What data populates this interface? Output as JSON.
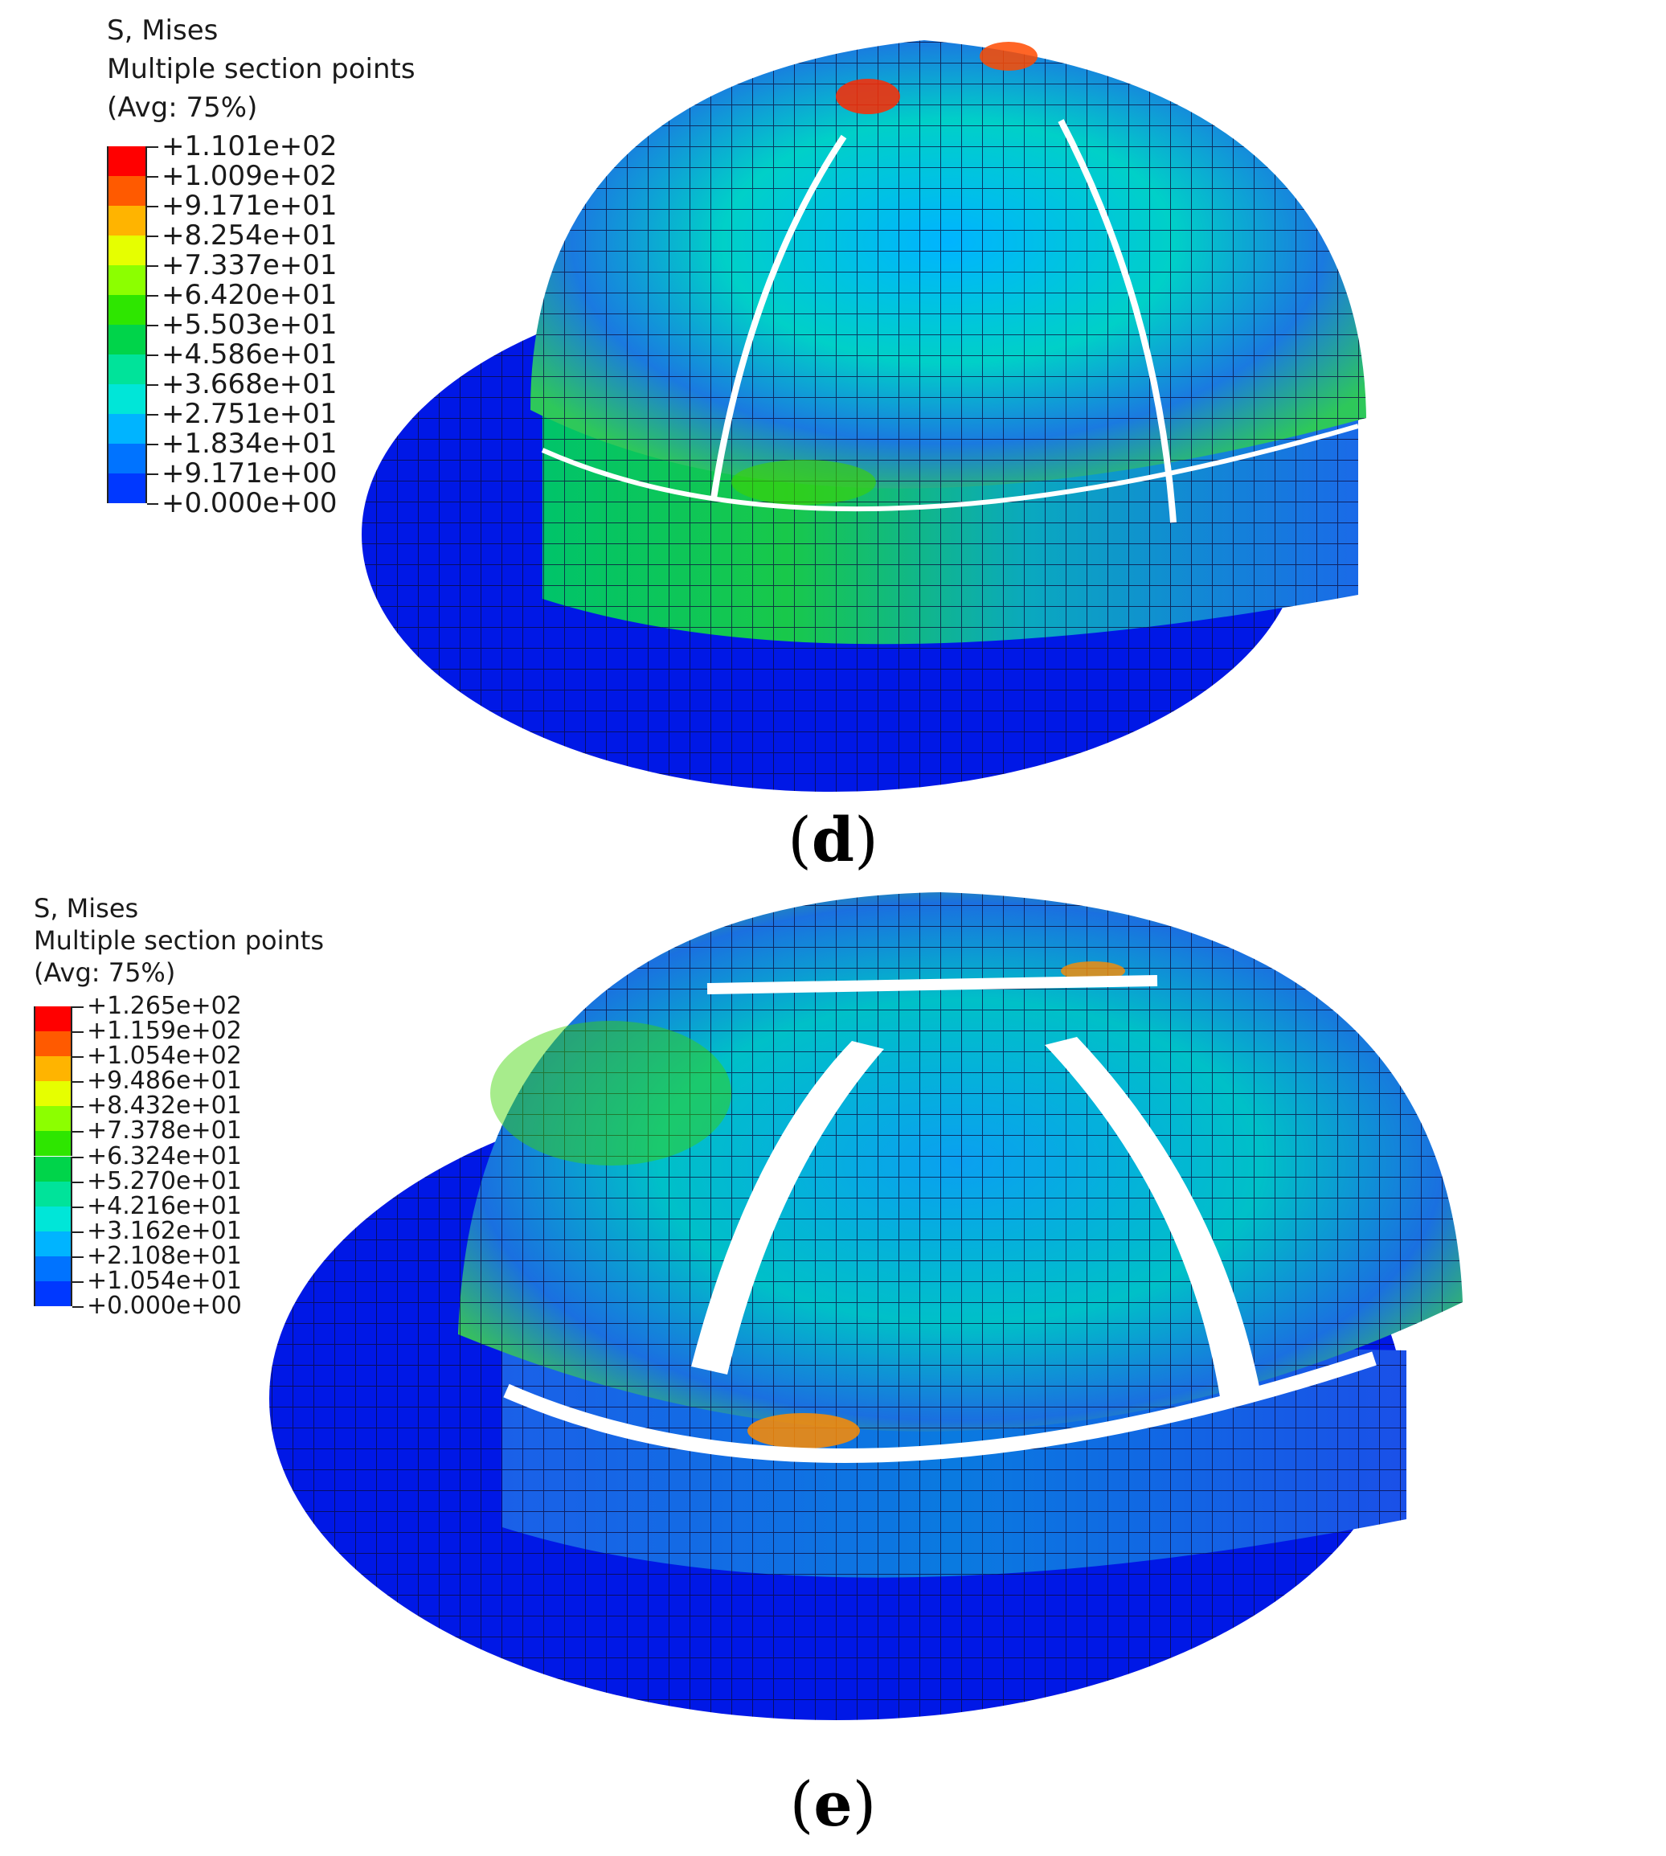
{
  "panels": [
    {
      "id": "d",
      "caption_open": "(",
      "caption_letter": "d",
      "caption_close": ")",
      "legend": {
        "title": "S, Mises",
        "subtitle": "Multiple section points",
        "averaging": "(Avg: 75%)",
        "values": [
          "+1.101e+02",
          "+1.009e+02",
          "+9.171e+01",
          "+8.254e+01",
          "+7.337e+01",
          "+6.420e+01",
          "+5.503e+01",
          "+4.586e+01",
          "+3.668e+01",
          "+2.751e+01",
          "+1.834e+01",
          "+9.171e+00",
          "+0.000e+00"
        ]
      }
    },
    {
      "id": "e",
      "caption_open": "(",
      "caption_letter": "e",
      "caption_close": ")",
      "legend": {
        "title": "S, Mises",
        "subtitle": "Multiple section points",
        "averaging": "(Avg: 75%)",
        "values": [
          "+1.265e+02",
          "+1.159e+02",
          "+1.054e+02",
          "+9.486e+01",
          "+8.432e+01",
          "+7.378e+01",
          "+6.324e+01",
          "+5.270e+01",
          "+4.216e+01",
          "+3.162e+01",
          "+2.108e+01",
          "+1.054e+01",
          "+0.000e+00"
        ]
      }
    }
  ],
  "colormap": [
    "#ff0000",
    "#ff5a00",
    "#ffb400",
    "#e6ff00",
    "#8cff00",
    "#2ee600",
    "#00d44a",
    "#00e39a",
    "#00e6d8",
    "#00b4ff",
    "#0073ff",
    "#0038ff",
    "#0000ff"
  ]
}
